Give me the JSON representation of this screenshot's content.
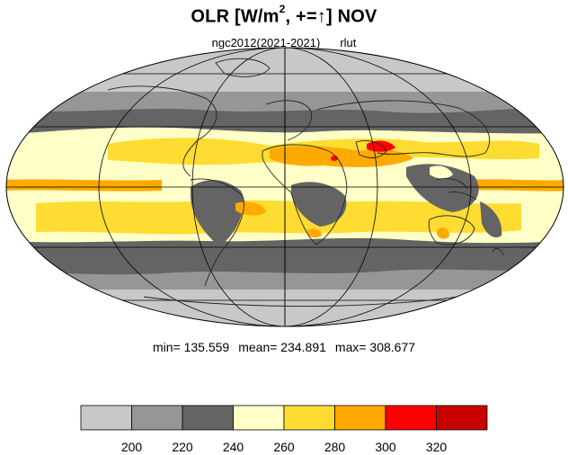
{
  "title": {
    "prefix": "OLR [W/m",
    "exponent": "2",
    "suffix": ", +=↑] NOV"
  },
  "subtitle": {
    "run": "ngc2012(2021-2021)",
    "variable": "rlut"
  },
  "stats": {
    "min": "min= 135.559",
    "mean": "mean= 234.891",
    "max": "max= 308.677"
  },
  "projection": "mollweide",
  "colorbar": {
    "colors": [
      "#c8c8c8",
      "#969696",
      "#646464",
      "#ffffc8",
      "#ffdc32",
      "#ffaa00",
      "#ff0000",
      "#c80000"
    ],
    "labels": [
      "200",
      "220",
      "240",
      "260",
      "280",
      "300",
      "320"
    ]
  }
}
